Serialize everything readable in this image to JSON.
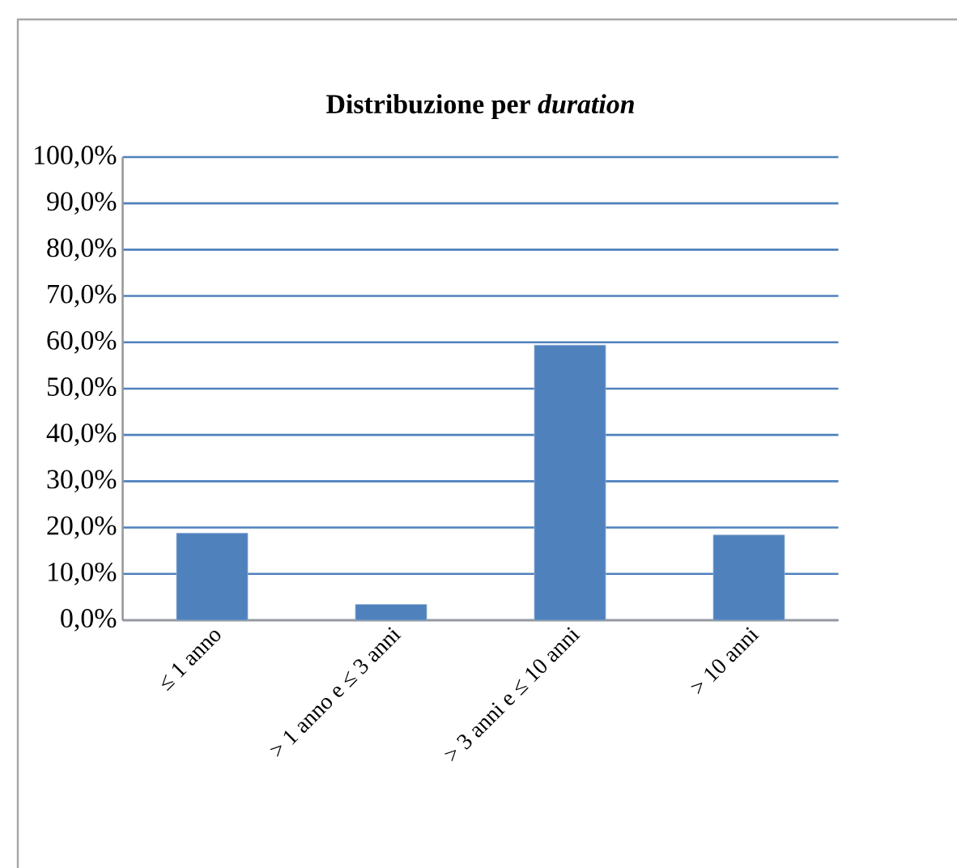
{
  "chart_data": {
    "type": "bar",
    "title": "Distribuzione  per *duration*",
    "categories": [
      "≤ 1 anno",
      "> 1 anno e ≤ 3 anni",
      "> 3 anni e ≤ 10 anni",
      "> 10 anni"
    ],
    "values": [
      18.8,
      3.4,
      59.4,
      18.4
    ],
    "color": "#4f81bd",
    "ylim": [
      0,
      100
    ],
    "yticks": [
      {
        "value": 0,
        "label": "0,0%"
      },
      {
        "value": 10,
        "label": "10,0%"
      },
      {
        "value": 20,
        "label": "20,0%"
      },
      {
        "value": 30,
        "label": "30,0%"
      },
      {
        "value": 40,
        "label": "40,0%"
      },
      {
        "value": 50,
        "label": "50,0%"
      },
      {
        "value": 60,
        "label": "60,0%"
      },
      {
        "value": 70,
        "label": "70,0%"
      },
      {
        "value": 80,
        "label": "80,0%"
      },
      {
        "value": 90,
        "label": "90,0%"
      },
      {
        "value": 100,
        "label": "100,0%"
      }
    ],
    "grid": "y"
  }
}
